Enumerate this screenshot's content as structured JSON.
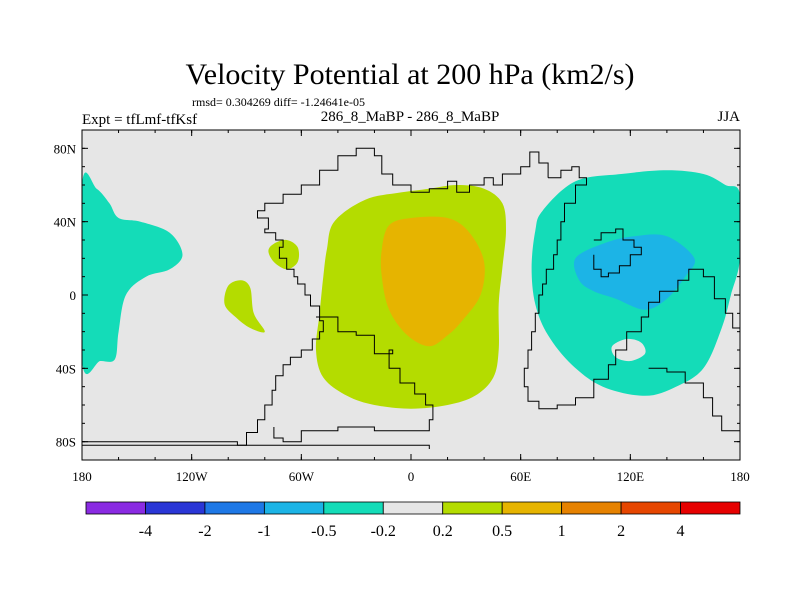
{
  "chart_data": {
    "type": "contour-map",
    "title": "Velocity Potential at 200 hPa (km2/s)",
    "stats_line": "rmsd= 0.304269 diff= -1.24641e-05",
    "subtitle_left": "Expt = tfLmf-tfKsf",
    "subtitle_center": "286_8_MaBP - 286_8_MaBP",
    "subtitle_right": "JJA",
    "x_ticks": [
      {
        "value": -180,
        "label": "180"
      },
      {
        "value": -120,
        "label": "120W"
      },
      {
        "value": -60,
        "label": "60W"
      },
      {
        "value": 0,
        "label": "0"
      },
      {
        "value": 60,
        "label": "60E"
      },
      {
        "value": 120,
        "label": "120E"
      },
      {
        "value": 180,
        "label": "180"
      }
    ],
    "y_ticks": [
      {
        "value": 80,
        "label": "80N"
      },
      {
        "value": 40,
        "label": "40N"
      },
      {
        "value": 0,
        "label": "0"
      },
      {
        "value": -40,
        "label": "40S"
      },
      {
        "value": -80,
        "label": "80S"
      }
    ],
    "xlim": [
      -180,
      180
    ],
    "ylim": [
      -90,
      90
    ],
    "colorbar": {
      "boundaries": [
        "-4",
        "-2",
        "-1",
        "-0.5",
        "-0.2",
        "0.2",
        "0.5",
        "1",
        "2",
        "4"
      ],
      "colors": [
        "#8a2be2",
        "#2a36d6",
        "#1e78e6",
        "#1cb4e6",
        "#14dcb8",
        "#e6e6e6",
        "#b4dc00",
        "#e6b400",
        "#e68200",
        "#e64600",
        "#e60000"
      ]
    },
    "regions": [
      {
        "name": "positive-region-africa",
        "level": "0.2 to 0.5",
        "color": "#b4dc00",
        "points": [
          [
            -42,
            40
          ],
          [
            -25,
            52
          ],
          [
            -5,
            56
          ],
          [
            10,
            58
          ],
          [
            25,
            60
          ],
          [
            40,
            58
          ],
          [
            50,
            50
          ],
          [
            52,
            35
          ],
          [
            50,
            15
          ],
          [
            48,
            -5
          ],
          [
            48,
            -30
          ],
          [
            45,
            -45
          ],
          [
            35,
            -55
          ],
          [
            20,
            -60
          ],
          [
            0,
            -62
          ],
          [
            -20,
            -60
          ],
          [
            -35,
            -55
          ],
          [
            -48,
            -45
          ],
          [
            -52,
            -30
          ],
          [
            -50,
            -10
          ],
          [
            -48,
            10
          ],
          [
            -46,
            25
          ]
        ]
      },
      {
        "name": "positive-region-west-atlantic",
        "level": "0.2 to 0.5",
        "color": "#b4dc00",
        "points": [
          [
            -75,
            28
          ],
          [
            -68,
            30
          ],
          [
            -62,
            26
          ],
          [
            -62,
            18
          ],
          [
            -68,
            14
          ],
          [
            -75,
            18
          ],
          [
            -78,
            24
          ]
        ]
      },
      {
        "name": "positive-region-south-america",
        "level": "0.2 to 0.5",
        "color": "#b4dc00",
        "points": [
          [
            -100,
            5
          ],
          [
            -93,
            8
          ],
          [
            -88,
            4
          ],
          [
            -86,
            -10
          ],
          [
            -80,
            -20
          ],
          [
            -88,
            -18
          ],
          [
            -96,
            -12
          ],
          [
            -102,
            -5
          ]
        ]
      },
      {
        "name": "positive-core-region",
        "level": "0.5 to 1",
        "color": "#e6b400",
        "points": [
          [
            -12,
            38
          ],
          [
            0,
            42
          ],
          [
            20,
            42
          ],
          [
            32,
            34
          ],
          [
            40,
            18
          ],
          [
            38,
            0
          ],
          [
            28,
            -14
          ],
          [
            20,
            -22
          ],
          [
            10,
            -28
          ],
          [
            -2,
            -22
          ],
          [
            -12,
            -8
          ],
          [
            -16,
            10
          ],
          [
            -16,
            25
          ]
        ]
      },
      {
        "name": "negative-region-pacific-west",
        "level": "-0.5 to -0.2",
        "color": "#14dcb8",
        "points": [
          [
            -180,
            60
          ],
          [
            -172,
            58
          ],
          [
            -165,
            50
          ],
          [
            -160,
            42
          ],
          [
            -148,
            40
          ],
          [
            -132,
            34
          ],
          [
            -125,
            22
          ],
          [
            -132,
            14
          ],
          [
            -145,
            10
          ],
          [
            -156,
            0
          ],
          [
            -160,
            -20
          ],
          [
            -162,
            -35
          ],
          [
            -170,
            -36
          ],
          [
            -180,
            -36
          ]
        ]
      },
      {
        "name": "negative-region-asia-pacific",
        "level": "-0.5 to -0.2",
        "color": "#14dcb8",
        "points": [
          [
            72,
            46
          ],
          [
            90,
            62
          ],
          [
            115,
            66
          ],
          [
            140,
            68
          ],
          [
            160,
            66
          ],
          [
            172,
            60
          ],
          [
            180,
            55
          ],
          [
            180,
            20
          ],
          [
            175,
            0
          ],
          [
            170,
            -18
          ],
          [
            160,
            -40
          ],
          [
            145,
            -50
          ],
          [
            128,
            -55
          ],
          [
            105,
            -50
          ],
          [
            88,
            -38
          ],
          [
            75,
            -22
          ],
          [
            68,
            -5
          ],
          [
            66,
            15
          ],
          [
            68,
            35
          ]
        ]
      },
      {
        "name": "negative-region-hole",
        "level": "-0.2 to 0.2",
        "color": "#e6e6e6",
        "points": [
          [
            110,
            -28
          ],
          [
            118,
            -24
          ],
          [
            126,
            -26
          ],
          [
            128,
            -32
          ],
          [
            120,
            -36
          ],
          [
            112,
            -34
          ]
        ]
      },
      {
        "name": "negative-core-region",
        "level": "-1 to -0.5",
        "color": "#1cb4e6",
        "points": [
          [
            90,
            20
          ],
          [
            105,
            28
          ],
          [
            122,
            32
          ],
          [
            140,
            32
          ],
          [
            155,
            20
          ],
          [
            150,
            10
          ],
          [
            140,
            -2
          ],
          [
            128,
            -8
          ],
          [
            112,
            -2
          ],
          [
            100,
            2
          ],
          [
            92,
            8
          ]
        ]
      }
    ],
    "coastlines": [
      {
        "name": "coastline-west",
        "points": [
          [
            -180,
            -80
          ],
          [
            -130,
            -80
          ],
          [
            -95,
            -82
          ],
          [
            -90,
            -75
          ],
          [
            -84,
            -68
          ],
          [
            -80,
            -60
          ],
          [
            -76,
            -52
          ],
          [
            -74,
            -44
          ],
          [
            -70,
            -38
          ],
          [
            -66,
            -34
          ],
          [
            -60,
            -30
          ],
          [
            -54,
            -24
          ],
          [
            -50,
            -20
          ],
          [
            -48,
            -14
          ],
          [
            -50,
            -6
          ],
          [
            -55,
            0
          ],
          [
            -58,
            6
          ],
          [
            -62,
            10
          ],
          [
            -64,
            14
          ],
          [
            -68,
            20
          ],
          [
            -72,
            26
          ],
          [
            -70,
            30
          ],
          [
            -74,
            34
          ],
          [
            -80,
            36
          ],
          [
            -78,
            42
          ],
          [
            -84,
            46
          ],
          [
            -80,
            50
          ],
          [
            -70,
            55
          ],
          [
            -60,
            60
          ],
          [
            -50,
            68
          ],
          [
            -40,
            76
          ],
          [
            -30,
            80
          ],
          [
            -20,
            76
          ],
          [
            -16,
            66
          ],
          [
            -10,
            60
          ],
          [
            0,
            56
          ],
          [
            10,
            58
          ],
          [
            20,
            62
          ],
          [
            25,
            56
          ],
          [
            32,
            60
          ],
          [
            40,
            64
          ],
          [
            45,
            60
          ],
          [
            50,
            66
          ],
          [
            60,
            70
          ],
          [
            65,
            78
          ],
          [
            70,
            72
          ],
          [
            75,
            64
          ]
        ]
      },
      {
        "name": "coastline-africa",
        "points": [
          [
            -52,
            -12
          ],
          [
            -40,
            -20
          ],
          [
            -30,
            -22
          ],
          [
            -20,
            -32
          ],
          [
            -10,
            -30
          ],
          [
            -12,
            -40
          ],
          [
            -6,
            -48
          ],
          [
            2,
            -54
          ],
          [
            8,
            -60
          ],
          [
            12,
            -68
          ],
          [
            10,
            -74
          ],
          [
            -20,
            -72
          ],
          [
            -40,
            -74
          ],
          [
            -60,
            -80
          ],
          [
            -70,
            -78
          ],
          [
            -75,
            -72
          ]
        ]
      },
      {
        "name": "coastline-antarctic",
        "points": [
          [
            -180,
            -82
          ],
          [
            -100,
            -82
          ],
          [
            -50,
            -82
          ],
          [
            0,
            -82
          ],
          [
            10,
            -84
          ]
        ]
      },
      {
        "name": "coastline-east",
        "points": [
          [
            75,
            64
          ],
          [
            82,
            68
          ],
          [
            88,
            70
          ],
          [
            92,
            64
          ],
          [
            96,
            60
          ],
          [
            90,
            50
          ],
          [
            84,
            40
          ],
          [
            82,
            30
          ],
          [
            80,
            22
          ],
          [
            78,
            14
          ],
          [
            74,
            6
          ],
          [
            72,
            0
          ],
          [
            70,
            -10
          ],
          [
            68,
            -20
          ],
          [
            66,
            -30
          ],
          [
            64,
            -40
          ],
          [
            62,
            -50
          ],
          [
            64,
            -58
          ],
          [
            70,
            -62
          ],
          [
            80,
            -60
          ],
          [
            90,
            -56
          ],
          [
            100,
            -46
          ],
          [
            108,
            -38
          ],
          [
            112,
            -30
          ],
          [
            118,
            -20
          ],
          [
            126,
            -12
          ],
          [
            130,
            -4
          ],
          [
            136,
            2
          ],
          [
            146,
            8
          ],
          [
            152,
            14
          ],
          [
            160,
            10
          ],
          [
            166,
            -2
          ],
          [
            172,
            -10
          ],
          [
            176,
            -18
          ],
          [
            180,
            -26
          ]
        ]
      },
      {
        "name": "coastline-australia",
        "points": [
          [
            130,
            -40
          ],
          [
            140,
            -42
          ],
          [
            150,
            -48
          ],
          [
            160,
            -56
          ],
          [
            165,
            -66
          ],
          [
            170,
            -74
          ],
          [
            180,
            -80
          ]
        ]
      },
      {
        "name": "coastline-asia-inland",
        "points": [
          [
            100,
            30
          ],
          [
            104,
            34
          ],
          [
            112,
            36
          ],
          [
            116,
            30
          ],
          [
            122,
            26
          ],
          [
            126,
            22
          ],
          [
            120,
            16
          ],
          [
            114,
            12
          ],
          [
            108,
            10
          ],
          [
            104,
            14
          ],
          [
            100,
            22
          ]
        ]
      }
    ]
  }
}
